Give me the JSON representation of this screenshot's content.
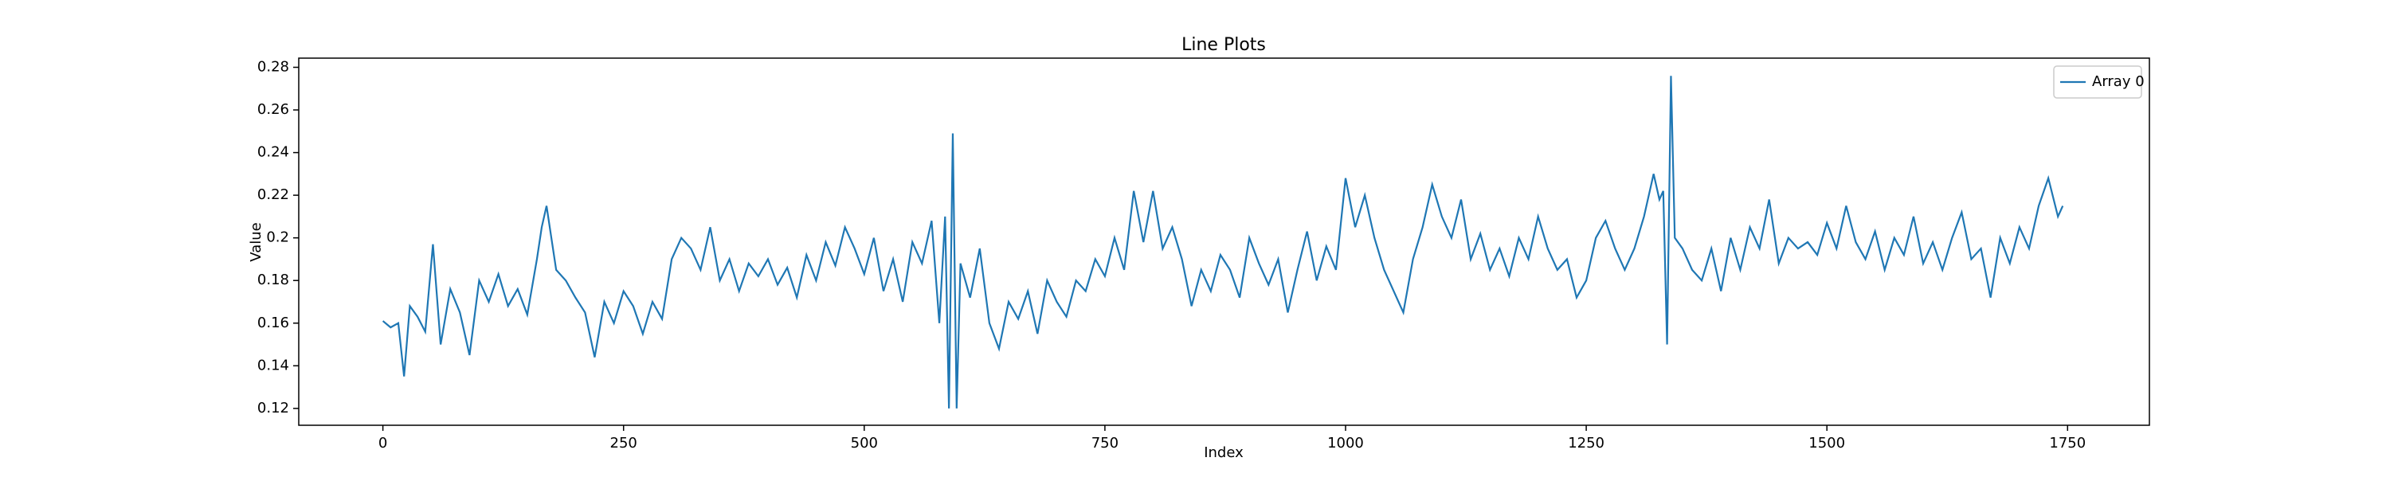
{
  "chart_data": {
    "type": "line",
    "title": "Line Plots",
    "x_label": "Index",
    "y_label": "Value",
    "x": [
      0,
      8,
      16,
      22,
      28,
      36,
      44,
      52,
      60,
      70,
      80,
      90,
      100,
      110,
      120,
      130,
      140,
      150,
      160,
      165,
      170,
      180,
      190,
      200,
      210,
      220,
      230,
      240,
      250,
      260,
      270,
      280,
      290,
      300,
      310,
      320,
      330,
      340,
      350,
      360,
      370,
      380,
      390,
      400,
      410,
      420,
      430,
      440,
      450,
      460,
      470,
      480,
      490,
      500,
      510,
      520,
      530,
      540,
      550,
      560,
      570,
      578,
      584,
      588,
      592,
      596,
      600,
      610,
      620,
      630,
      640,
      650,
      660,
      670,
      680,
      690,
      700,
      710,
      720,
      730,
      740,
      750,
      760,
      770,
      780,
      790,
      800,
      810,
      820,
      830,
      840,
      850,
      860,
      870,
      880,
      890,
      900,
      910,
      920,
      930,
      940,
      950,
      960,
      970,
      980,
      990,
      1000,
      1010,
      1020,
      1030,
      1040,
      1050,
      1060,
      1070,
      1080,
      1090,
      1100,
      1110,
      1120,
      1130,
      1140,
      1150,
      1160,
      1170,
      1180,
      1190,
      1200,
      1210,
      1220,
      1230,
      1240,
      1250,
      1260,
      1270,
      1280,
      1290,
      1300,
      1310,
      1320,
      1326,
      1330,
      1334,
      1338,
      1342,
      1350,
      1360,
      1370,
      1380,
      1390,
      1400,
      1410,
      1420,
      1430,
      1440,
      1450,
      1460,
      1470,
      1480,
      1490,
      1500,
      1510,
      1520,
      1530,
      1540,
      1550,
      1560,
      1570,
      1580,
      1590,
      1600,
      1610,
      1620,
      1630,
      1640,
      1650,
      1660,
      1670,
      1680,
      1690,
      1700,
      1710,
      1720,
      1730,
      1740,
      1745
    ],
    "series": [
      {
        "name": "Array 0",
        "color": "#1f77b4",
        "values": [
          0.161,
          0.158,
          0.16,
          0.135,
          0.168,
          0.163,
          0.156,
          0.197,
          0.15,
          0.176,
          0.165,
          0.145,
          0.18,
          0.17,
          0.183,
          0.168,
          0.176,
          0.164,
          0.19,
          0.205,
          0.215,
          0.185,
          0.18,
          0.172,
          0.165,
          0.144,
          0.17,
          0.16,
          0.175,
          0.168,
          0.155,
          0.17,
          0.162,
          0.19,
          0.2,
          0.195,
          0.185,
          0.205,
          0.18,
          0.19,
          0.175,
          0.188,
          0.182,
          0.19,
          0.178,
          0.186,
          0.172,
          0.192,
          0.18,
          0.198,
          0.187,
          0.205,
          0.195,
          0.183,
          0.2,
          0.175,
          0.19,
          0.17,
          0.198,
          0.188,
          0.208,
          0.16,
          0.21,
          0.12,
          0.249,
          0.12,
          0.188,
          0.172,
          0.195,
          0.16,
          0.148,
          0.17,
          0.162,
          0.175,
          0.155,
          0.18,
          0.17,
          0.163,
          0.18,
          0.175,
          0.19,
          0.182,
          0.2,
          0.185,
          0.222,
          0.198,
          0.222,
          0.195,
          0.205,
          0.19,
          0.168,
          0.185,
          0.175,
          0.192,
          0.185,
          0.172,
          0.2,
          0.188,
          0.178,
          0.19,
          0.165,
          0.185,
          0.203,
          0.18,
          0.196,
          0.185,
          0.228,
          0.205,
          0.22,
          0.2,
          0.185,
          0.175,
          0.165,
          0.19,
          0.205,
          0.225,
          0.21,
          0.2,
          0.218,
          0.19,
          0.202,
          0.185,
          0.195,
          0.182,
          0.2,
          0.19,
          0.21,
          0.195,
          0.185,
          0.19,
          0.172,
          0.18,
          0.2,
          0.208,
          0.195,
          0.185,
          0.195,
          0.21,
          0.23,
          0.218,
          0.222,
          0.15,
          0.276,
          0.2,
          0.195,
          0.185,
          0.18,
          0.195,
          0.175,
          0.2,
          0.185,
          0.205,
          0.195,
          0.218,
          0.188,
          0.2,
          0.195,
          0.198,
          0.192,
          0.207,
          0.195,
          0.215,
          0.198,
          0.19,
          0.203,
          0.185,
          0.2,
          0.192,
          0.21,
          0.188,
          0.198,
          0.185,
          0.2,
          0.212,
          0.19,
          0.195,
          0.172,
          0.2,
          0.188,
          0.205,
          0.195,
          0.215,
          0.228,
          0.21,
          0.215
        ]
      }
    ],
    "xlim": [
      -87.4,
      1835
    ],
    "ylim": [
      0.1121,
      0.2843
    ],
    "xticks": [
      0,
      250,
      500,
      750,
      1000,
      1250,
      1500,
      1750
    ],
    "yticks": [
      0.12,
      0.14,
      0.16,
      0.18,
      0.2,
      0.22,
      0.24,
      0.26,
      0.28
    ],
    "legend": "upper right"
  }
}
